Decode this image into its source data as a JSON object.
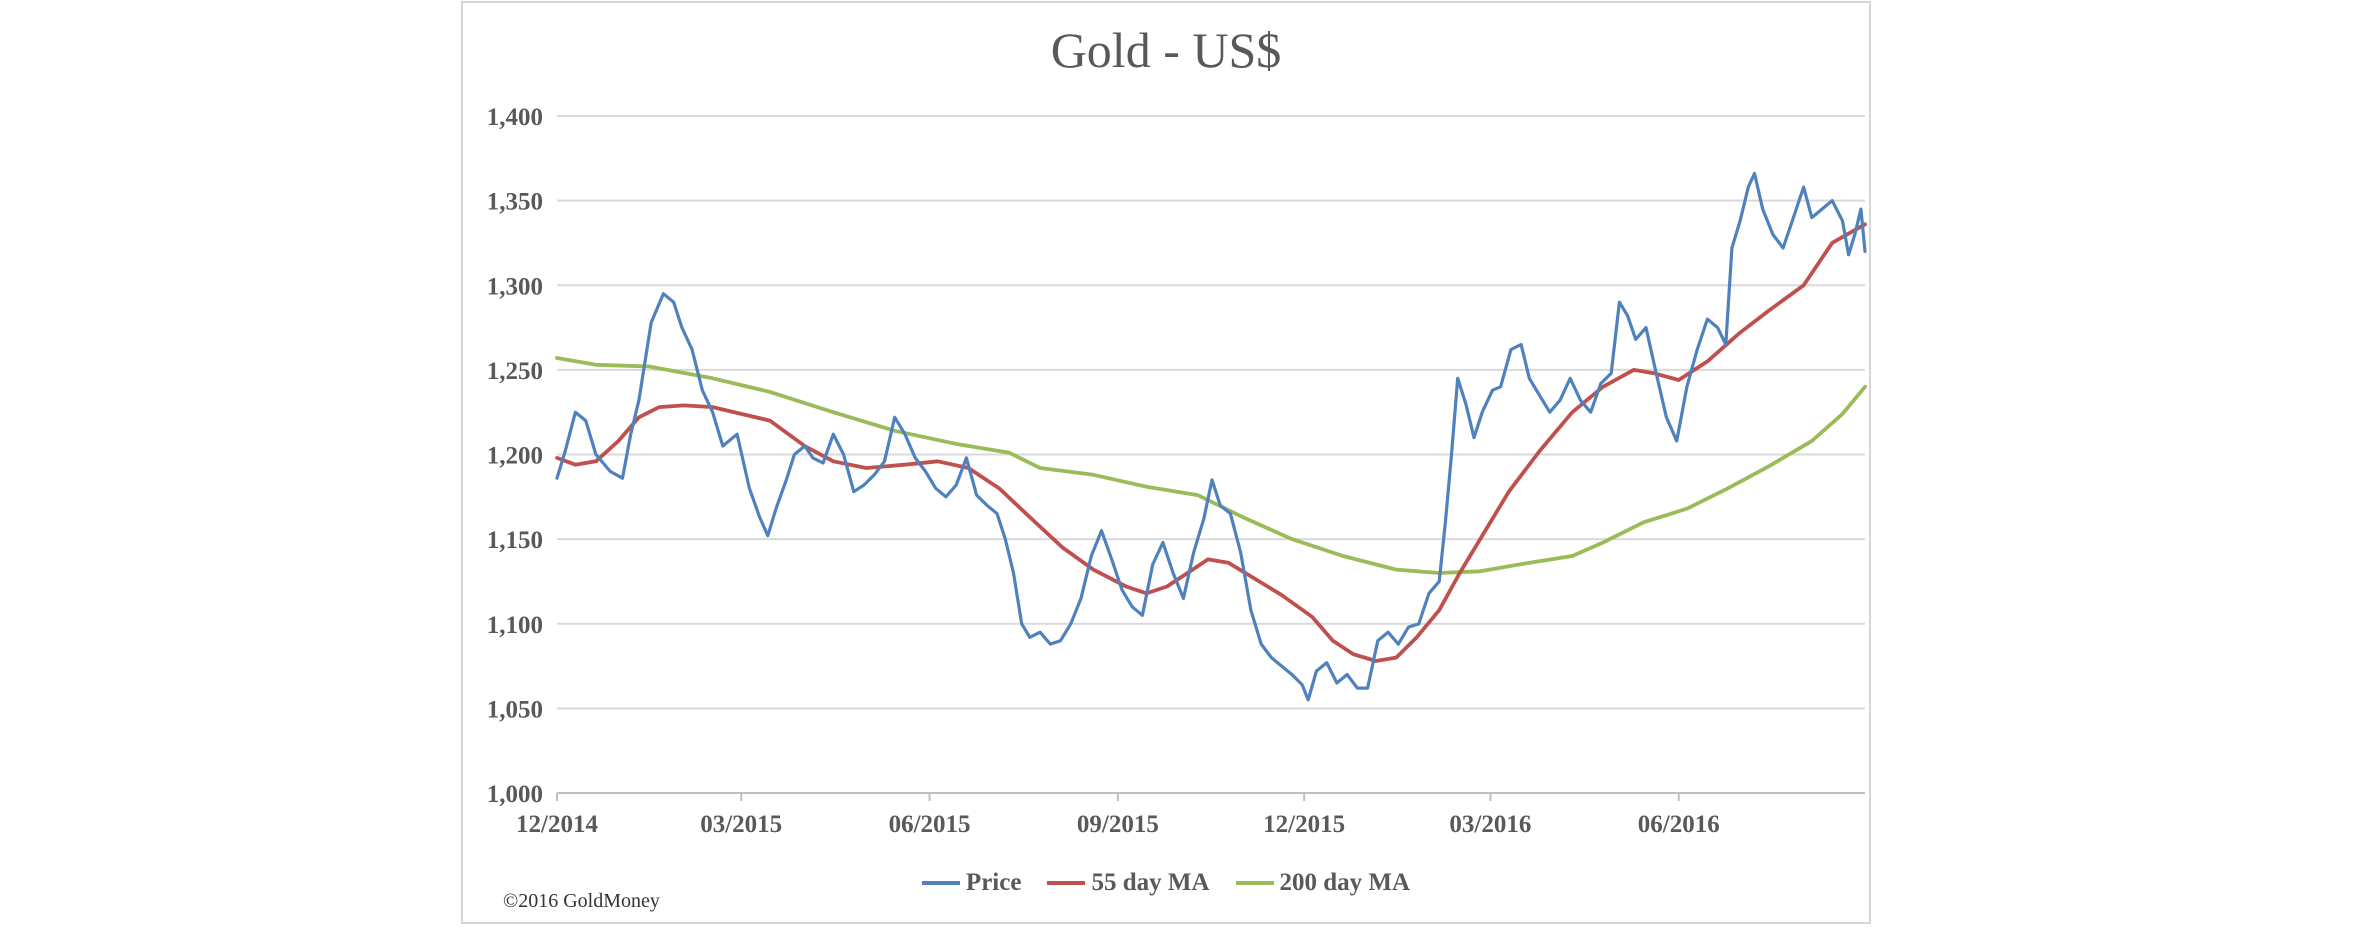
{
  "chart_data": {
    "type": "line",
    "title": "Gold - US$",
    "xlabel": "",
    "ylabel": "",
    "ylim": [
      1000,
      1400
    ],
    "y_ticks": [
      "1,000",
      "1,050",
      "1,100",
      "1,150",
      "1,200",
      "1,250",
      "1,300",
      "1,350",
      "1,400"
    ],
    "x_range": [
      "2014-12-01",
      "2016-08-31"
    ],
    "x_ticks": [
      {
        "date": "2014-12-01",
        "label": "12/2014"
      },
      {
        "date": "2015-03-01",
        "label": "03/2015"
      },
      {
        "date": "2015-06-01",
        "label": "06/2015"
      },
      {
        "date": "2015-09-01",
        "label": "09/2015"
      },
      {
        "date": "2015-12-01",
        "label": "12/2015"
      },
      {
        "date": "2016-03-01",
        "label": "03/2016"
      },
      {
        "date": "2016-06-01",
        "label": "06/2016"
      }
    ],
    "grid": "horizontal",
    "legend_position": "bottom",
    "series": [
      {
        "name": "Price",
        "color": "#4f81bd",
        "points": [
          [
            "2014-12-01",
            1186
          ],
          [
            "2014-12-05",
            1202
          ],
          [
            "2014-12-10",
            1225
          ],
          [
            "2014-12-15",
            1220
          ],
          [
            "2014-12-20",
            1200
          ],
          [
            "2014-12-27",
            1190
          ],
          [
            "2015-01-02",
            1186
          ],
          [
            "2015-01-06",
            1212
          ],
          [
            "2015-01-10",
            1232
          ],
          [
            "2015-01-16",
            1278
          ],
          [
            "2015-01-22",
            1295
          ],
          [
            "2015-01-27",
            1290
          ],
          [
            "2015-01-31",
            1275
          ],
          [
            "2015-02-05",
            1262
          ],
          [
            "2015-02-10",
            1238
          ],
          [
            "2015-02-15",
            1225
          ],
          [
            "2015-02-20",
            1205
          ],
          [
            "2015-02-27",
            1212
          ],
          [
            "2015-03-05",
            1180
          ],
          [
            "2015-03-10",
            1163
          ],
          [
            "2015-03-14",
            1152
          ],
          [
            "2015-03-18",
            1168
          ],
          [
            "2015-03-23",
            1185
          ],
          [
            "2015-03-27",
            1200
          ],
          [
            "2015-04-01",
            1205
          ],
          [
            "2015-04-05",
            1198
          ],
          [
            "2015-04-10",
            1195
          ],
          [
            "2015-04-15",
            1212
          ],
          [
            "2015-04-20",
            1200
          ],
          [
            "2015-04-25",
            1178
          ],
          [
            "2015-04-30",
            1182
          ],
          [
            "2015-05-05",
            1188
          ],
          [
            "2015-05-10",
            1196
          ],
          [
            "2015-05-15",
            1222
          ],
          [
            "2015-05-20",
            1212
          ],
          [
            "2015-05-25",
            1198
          ],
          [
            "2015-05-30",
            1190
          ],
          [
            "2015-06-04",
            1180
          ],
          [
            "2015-06-09",
            1175
          ],
          [
            "2015-06-14",
            1182
          ],
          [
            "2015-06-19",
            1198
          ],
          [
            "2015-06-24",
            1176
          ],
          [
            "2015-06-29",
            1170
          ],
          [
            "2015-07-04",
            1165
          ],
          [
            "2015-07-08",
            1150
          ],
          [
            "2015-07-12",
            1130
          ],
          [
            "2015-07-16",
            1100
          ],
          [
            "2015-07-20",
            1092
          ],
          [
            "2015-07-25",
            1095
          ],
          [
            "2015-07-30",
            1088
          ],
          [
            "2015-08-04",
            1090
          ],
          [
            "2015-08-09",
            1100
          ],
          [
            "2015-08-14",
            1115
          ],
          [
            "2015-08-19",
            1140
          ],
          [
            "2015-08-24",
            1155
          ],
          [
            "2015-08-29",
            1138
          ],
          [
            "2015-09-03",
            1120
          ],
          [
            "2015-09-08",
            1110
          ],
          [
            "2015-09-13",
            1105
          ],
          [
            "2015-09-18",
            1135
          ],
          [
            "2015-09-23",
            1148
          ],
          [
            "2015-09-28",
            1130
          ],
          [
            "2015-10-03",
            1115
          ],
          [
            "2015-10-08",
            1142
          ],
          [
            "2015-10-13",
            1162
          ],
          [
            "2015-10-17",
            1185
          ],
          [
            "2015-10-21",
            1170
          ],
          [
            "2015-10-26",
            1165
          ],
          [
            "2015-10-31",
            1142
          ],
          [
            "2015-11-05",
            1108
          ],
          [
            "2015-11-10",
            1088
          ],
          [
            "2015-11-15",
            1080
          ],
          [
            "2015-11-20",
            1075
          ],
          [
            "2015-11-25",
            1070
          ],
          [
            "2015-11-30",
            1064
          ],
          [
            "2015-12-03",
            1055
          ],
          [
            "2015-12-07",
            1072
          ],
          [
            "2015-12-12",
            1077
          ],
          [
            "2015-12-17",
            1065
          ],
          [
            "2015-12-22",
            1070
          ],
          [
            "2015-12-27",
            1062
          ],
          [
            "2016-01-01",
            1062
          ],
          [
            "2016-01-06",
            1090
          ],
          [
            "2016-01-11",
            1095
          ],
          [
            "2016-01-16",
            1088
          ],
          [
            "2016-01-21",
            1098
          ],
          [
            "2016-01-26",
            1100
          ],
          [
            "2016-01-31",
            1118
          ],
          [
            "2016-02-05",
            1125
          ],
          [
            "2016-02-08",
            1160
          ],
          [
            "2016-02-11",
            1200
          ],
          [
            "2016-02-14",
            1245
          ],
          [
            "2016-02-18",
            1230
          ],
          [
            "2016-02-22",
            1210
          ],
          [
            "2016-02-26",
            1225
          ],
          [
            "2016-03-02",
            1238
          ],
          [
            "2016-03-06",
            1240
          ],
          [
            "2016-03-11",
            1262
          ],
          [
            "2016-03-16",
            1265
          ],
          [
            "2016-03-20",
            1245
          ],
          [
            "2016-03-25",
            1235
          ],
          [
            "2016-03-30",
            1225
          ],
          [
            "2016-04-04",
            1232
          ],
          [
            "2016-04-09",
            1245
          ],
          [
            "2016-04-14",
            1232
          ],
          [
            "2016-04-19",
            1225
          ],
          [
            "2016-04-24",
            1242
          ],
          [
            "2016-04-29",
            1248
          ],
          [
            "2016-05-03",
            1290
          ],
          [
            "2016-05-07",
            1282
          ],
          [
            "2016-05-11",
            1268
          ],
          [
            "2016-05-16",
            1275
          ],
          [
            "2016-05-21",
            1248
          ],
          [
            "2016-05-26",
            1222
          ],
          [
            "2016-05-31",
            1208
          ],
          [
            "2016-06-05",
            1240
          ],
          [
            "2016-06-10",
            1262
          ],
          [
            "2016-06-15",
            1280
          ],
          [
            "2016-06-20",
            1275
          ],
          [
            "2016-06-24",
            1265
          ],
          [
            "2016-06-27",
            1322
          ],
          [
            "2016-07-01",
            1338
          ],
          [
            "2016-07-05",
            1358
          ],
          [
            "2016-07-08",
            1366
          ],
          [
            "2016-07-12",
            1345
          ],
          [
            "2016-07-17",
            1330
          ],
          [
            "2016-07-22",
            1322
          ],
          [
            "2016-07-27",
            1340
          ],
          [
            "2016-08-01",
            1358
          ],
          [
            "2016-08-05",
            1340
          ],
          [
            "2016-08-10",
            1345
          ],
          [
            "2016-08-15",
            1350
          ],
          [
            "2016-08-20",
            1338
          ],
          [
            "2016-08-23",
            1318
          ],
          [
            "2016-08-26",
            1330
          ],
          [
            "2016-08-29",
            1345
          ],
          [
            "2016-08-31",
            1320
          ]
        ]
      },
      {
        "name": "55 day MA",
        "color": "#c0504d",
        "points": [
          [
            "2014-12-01",
            1198
          ],
          [
            "2014-12-10",
            1194
          ],
          [
            "2014-12-20",
            1196
          ],
          [
            "2014-12-31",
            1208
          ],
          [
            "2015-01-10",
            1222
          ],
          [
            "2015-01-20",
            1228
          ],
          [
            "2015-02-01",
            1229
          ],
          [
            "2015-02-15",
            1228
          ],
          [
            "2015-03-01",
            1224
          ],
          [
            "2015-03-15",
            1220
          ],
          [
            "2015-04-01",
            1205
          ],
          [
            "2015-04-15",
            1196
          ],
          [
            "2015-05-01",
            1192
          ],
          [
            "2015-05-20",
            1194
          ],
          [
            "2015-06-05",
            1196
          ],
          [
            "2015-06-20",
            1192
          ],
          [
            "2015-07-05",
            1180
          ],
          [
            "2015-07-20",
            1163
          ],
          [
            "2015-08-05",
            1145
          ],
          [
            "2015-08-20",
            1132
          ],
          [
            "2015-09-05",
            1122
          ],
          [
            "2015-09-15",
            1118
          ],
          [
            "2015-09-25",
            1122
          ],
          [
            "2015-10-05",
            1130
          ],
          [
            "2015-10-15",
            1138
          ],
          [
            "2015-10-25",
            1136
          ],
          [
            "2015-11-05",
            1128
          ],
          [
            "2015-11-20",
            1117
          ],
          [
            "2015-12-05",
            1104
          ],
          [
            "2015-12-15",
            1090
          ],
          [
            "2015-12-25",
            1082
          ],
          [
            "2016-01-05",
            1078
          ],
          [
            "2016-01-15",
            1080
          ],
          [
            "2016-01-25",
            1092
          ],
          [
            "2016-02-05",
            1108
          ],
          [
            "2016-02-15",
            1130
          ],
          [
            "2016-02-25",
            1150
          ],
          [
            "2016-03-10",
            1178
          ],
          [
            "2016-03-25",
            1202
          ],
          [
            "2016-04-10",
            1225
          ],
          [
            "2016-04-25",
            1240
          ],
          [
            "2016-05-10",
            1250
          ],
          [
            "2016-05-20",
            1248
          ],
          [
            "2016-06-01",
            1244
          ],
          [
            "2016-06-15",
            1255
          ],
          [
            "2016-07-01",
            1272
          ],
          [
            "2016-07-15",
            1285
          ],
          [
            "2016-08-01",
            1300
          ],
          [
            "2016-08-15",
            1325
          ],
          [
            "2016-08-31",
            1336
          ]
        ]
      },
      {
        "name": "200 day MA",
        "color": "#9bbb59",
        "points": [
          [
            "2014-12-01",
            1257
          ],
          [
            "2014-12-20",
            1253
          ],
          [
            "2015-01-15",
            1252
          ],
          [
            "2015-02-15",
            1245
          ],
          [
            "2015-03-15",
            1237
          ],
          [
            "2015-04-15",
            1225
          ],
          [
            "2015-05-15",
            1214
          ],
          [
            "2015-06-15",
            1206
          ],
          [
            "2015-07-10",
            1201
          ],
          [
            "2015-07-25",
            1192
          ],
          [
            "2015-08-20",
            1188
          ],
          [
            "2015-09-15",
            1181
          ],
          [
            "2015-10-10",
            1176
          ],
          [
            "2015-11-01",
            1163
          ],
          [
            "2015-11-25",
            1150
          ],
          [
            "2015-12-20",
            1140
          ],
          [
            "2016-01-15",
            1132
          ],
          [
            "2016-02-05",
            1130
          ],
          [
            "2016-02-25",
            1131
          ],
          [
            "2016-03-15",
            1135
          ],
          [
            "2016-04-10",
            1140
          ],
          [
            "2016-04-25",
            1148
          ],
          [
            "2016-05-15",
            1160
          ],
          [
            "2016-06-05",
            1168
          ],
          [
            "2016-06-25",
            1180
          ],
          [
            "2016-07-15",
            1193
          ],
          [
            "2016-08-05",
            1208
          ],
          [
            "2016-08-20",
            1224
          ],
          [
            "2016-08-31",
            1240
          ]
        ]
      }
    ]
  },
  "footer": {
    "copyright": "©2016 GoldMoney"
  }
}
